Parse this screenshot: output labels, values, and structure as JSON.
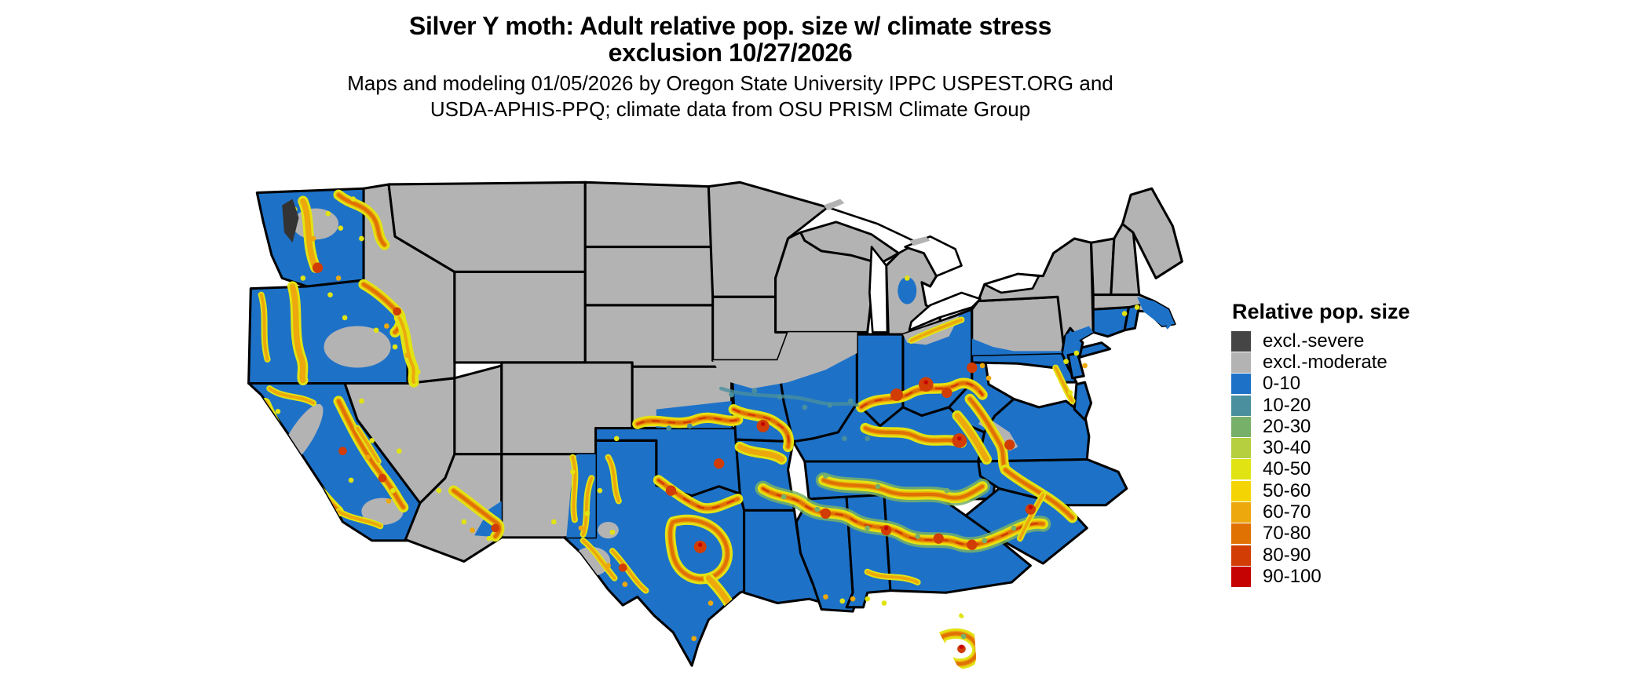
{
  "title": {
    "line1": "Silver Y moth: Adult relative pop. size w/ climate stress",
    "line2": "exclusion 10/27/2026"
  },
  "subtitle": {
    "line1": "Maps and modeling 01/05/2026 by Oregon State University IPPC USPEST.ORG and",
    "line2": "USDA-APHIS-PPQ; climate data from OSU PRISM Climate Group"
  },
  "legend": {
    "title": "Relative pop. size",
    "items": [
      {
        "label": "excl.-severe",
        "color": "#454545"
      },
      {
        "label": "excl.-moderate",
        "color": "#b3b3b3"
      },
      {
        "label": "0-10",
        "color": "#1d72c8"
      },
      {
        "label": "10-20",
        "color": "#4a8f9e"
      },
      {
        "label": "20-30",
        "color": "#77b069"
      },
      {
        "label": "30-40",
        "color": "#b5cf3e"
      },
      {
        "label": "40-50",
        "color": "#e2e312"
      },
      {
        "label": "50-60",
        "color": "#f4d503"
      },
      {
        "label": "60-70",
        "color": "#eca80d"
      },
      {
        "label": "70-80",
        "color": "#e07103"
      },
      {
        "label": "80-90",
        "color": "#d13d04"
      },
      {
        "label": "90-100",
        "color": "#c60303"
      }
    ]
  },
  "map": {
    "excluded_moderate_color": "#b3b3b3",
    "excluded_severe_color": "#454545",
    "base_population_color": "#1d72c8",
    "state_border_color": "#000000",
    "background_color": "#ffffff"
  }
}
